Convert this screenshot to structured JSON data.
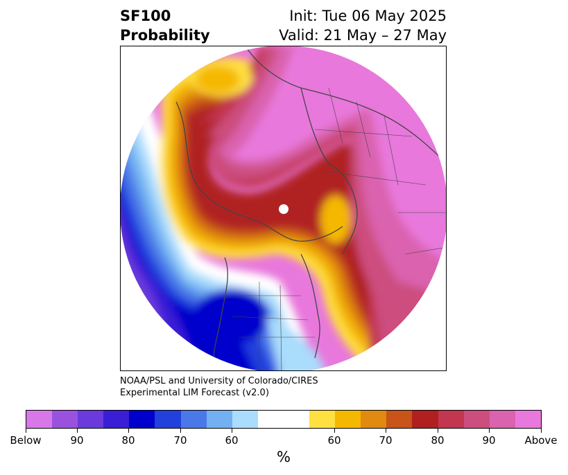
{
  "title": {
    "left_line1": "SF100",
    "left_line2": "Probability",
    "right_line1": "Init: Tue 06 May 2025",
    "right_line2": "Valid: 21 May – 27 May"
  },
  "credit": {
    "line1": "NOAA/PSL and University of Colorado/CIRES",
    "line2": "Experimental LIM Forecast (v2.0)"
  },
  "colorbar": {
    "unit": "%",
    "colors": [
      "#d878e8",
      "#9a52de",
      "#6a3adc",
      "#3a1ed6",
      "#0000cc",
      "#2240dc",
      "#4a78e8",
      "#72b0f2",
      "#aadcfc",
      "#ffffff",
      "#ffffff",
      "#fee040",
      "#f5b800",
      "#e08a10",
      "#c85418",
      "#b02020",
      "#c23650",
      "#cc4e7e",
      "#da62ae",
      "#e878dc"
    ],
    "tick_labels": [
      "Below",
      "90",
      "80",
      "70",
      "60",
      "60",
      "70",
      "80",
      "90",
      "Above"
    ]
  }
}
